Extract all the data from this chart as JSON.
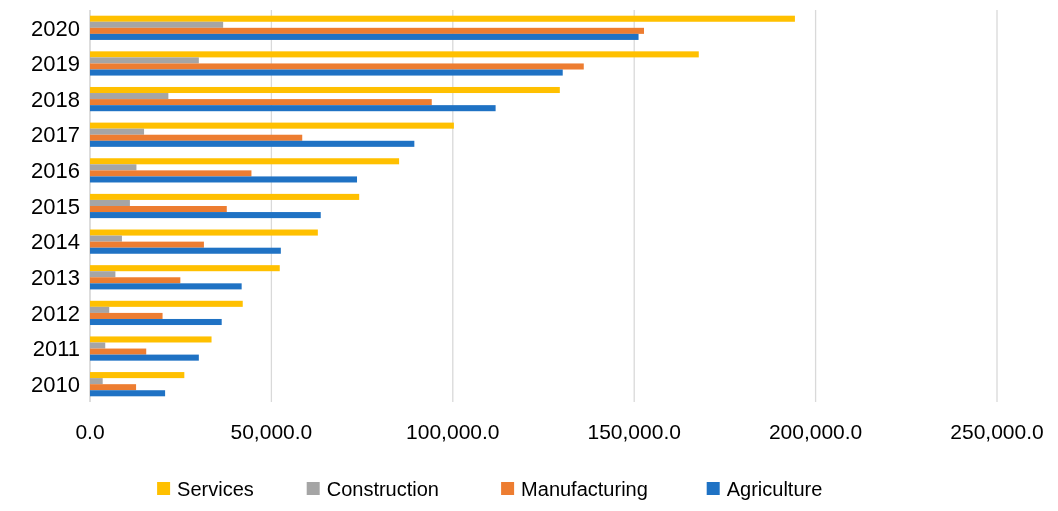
{
  "chart_data": {
    "type": "bar",
    "orientation": "horizontal",
    "categories": [
      "2020",
      "2019",
      "2018",
      "2017",
      "2016",
      "2015",
      "2014",
      "2013",
      "2012",
      "2011",
      "2010"
    ],
    "series": [
      {
        "name": "Services",
        "color": "#ffc000",
        "values": [
          194300,
          167800,
          129500,
          100300,
          85200,
          74200,
          62800,
          52300,
          42100,
          33500,
          26000
        ]
      },
      {
        "name": "Construction",
        "color": "#a5a5a5",
        "values": [
          36700,
          30000,
          21600,
          14900,
          12800,
          11000,
          8800,
          7000,
          5300,
          4200,
          3500
        ]
      },
      {
        "name": "Manufacturing",
        "color": "#ed7d31",
        "values": [
          152700,
          136100,
          94200,
          58500,
          44500,
          37700,
          31400,
          24900,
          20000,
          15500,
          12700
        ]
      },
      {
        "name": "Agriculture",
        "color": "#1f72c4",
        "values": [
          151200,
          130300,
          111800,
          89400,
          73600,
          63600,
          52600,
          41800,
          36300,
          30000,
          20700
        ]
      }
    ],
    "xlim": [
      0,
      250000
    ],
    "xticks": [
      {
        "value": 0,
        "label": "0.0"
      },
      {
        "value": 50000,
        "label": "50,000.0"
      },
      {
        "value": 100000,
        "label": "100,000.0"
      },
      {
        "value": 150000,
        "label": "150,000.0"
      },
      {
        "value": 200000,
        "label": "200,000.0"
      },
      {
        "value": 250000,
        "label": "250,000.0"
      }
    ],
    "grid": "x",
    "legend": "bottom"
  }
}
